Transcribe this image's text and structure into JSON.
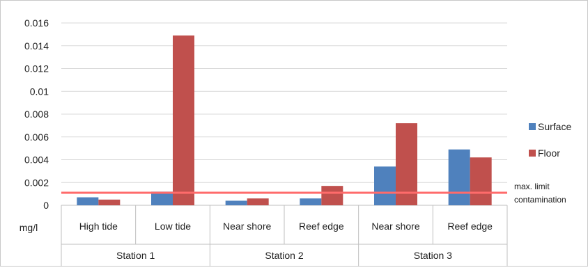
{
  "chart_data": {
    "type": "bar",
    "ylabel": "mg/l",
    "ylim": [
      0,
      0.016
    ],
    "yticks": [
      "0",
      "0.002",
      "0.004",
      "0.006",
      "0.008",
      "0.01",
      "0.012",
      "0.014",
      "0.016"
    ],
    "ytick_values": [
      0,
      0.002,
      0.004,
      0.006,
      0.008,
      0.01,
      0.012,
      0.014,
      0.016
    ],
    "grid": true,
    "legend_placement": "right",
    "groups": [
      {
        "label": "Station 1",
        "categories": [
          "High tide",
          "Low tide"
        ]
      },
      {
        "label": "Station 2",
        "categories": [
          "Near shore",
          "Reef edge"
        ]
      },
      {
        "label": "Station 3",
        "categories": [
          "Near shore",
          "Reef edge"
        ]
      }
    ],
    "categories": [
      "High tide",
      "Low tide",
      "Near shore",
      "Reef edge",
      "Near shore",
      "Reef edge"
    ],
    "series": [
      {
        "name": "Surface",
        "color": "#4f81bd",
        "values": [
          0.0007,
          0.0012,
          0.0004,
          0.0006,
          0.0034,
          0.0049
        ]
      },
      {
        "name": "Floor",
        "color": "#c0504d",
        "values": [
          0.0005,
          0.0149,
          0.0006,
          0.0017,
          0.0072,
          0.0042
        ]
      }
    ],
    "reference_line": {
      "value": 0.0011,
      "color": "#ff6b6b",
      "label_lines": [
        "max. limit",
        "contamination"
      ]
    }
  }
}
